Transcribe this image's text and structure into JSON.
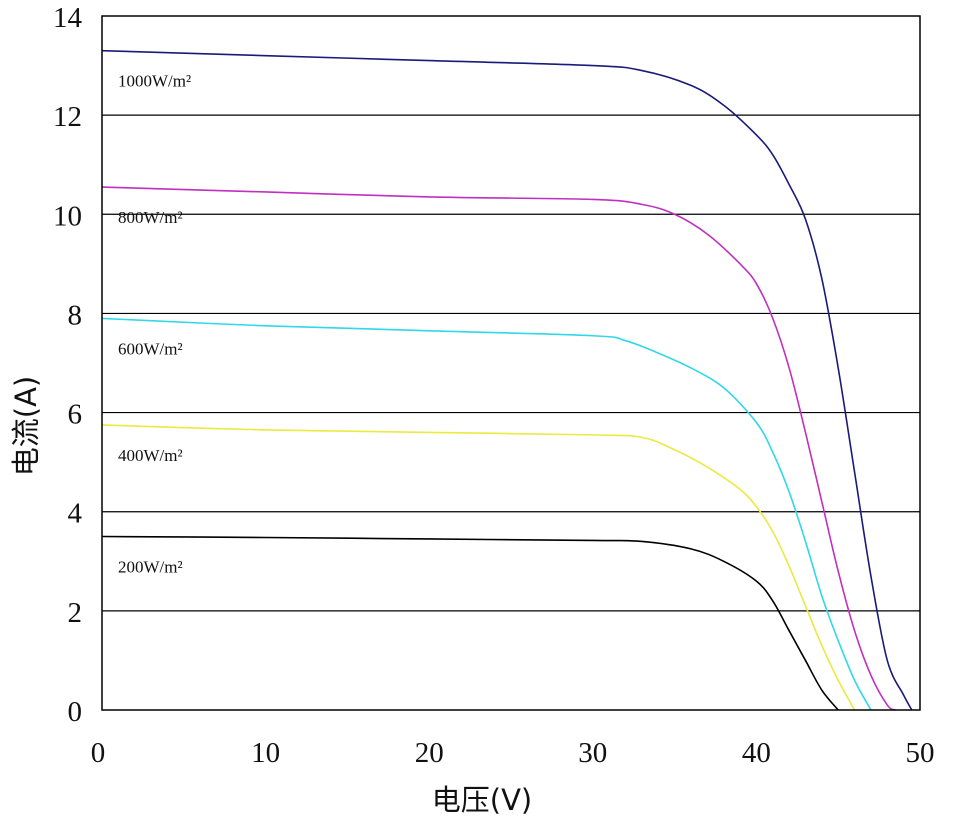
{
  "chart_data": {
    "type": "line",
    "title": "",
    "xlabel": "电压(V)",
    "ylabel": "电流(A)",
    "xlim": [
      0,
      50
    ],
    "ylim": [
      0,
      14
    ],
    "xticks": [
      "0",
      "10",
      "20",
      "30",
      "40",
      "50"
    ],
    "yticks": [
      "0",
      "2",
      "4",
      "6",
      "8",
      "10",
      "12",
      "14"
    ],
    "grid": "horizontal",
    "series": [
      {
        "name": "1000W/m²",
        "color": "#1a1a7a",
        "x": [
          0,
          10,
          20,
          30,
          33,
          36,
          38,
          40,
          41,
          42,
          43,
          44,
          45,
          46,
          47,
          48,
          49,
          49.5
        ],
        "y": [
          13.3,
          13.2,
          13.1,
          13.0,
          12.9,
          12.6,
          12.2,
          11.6,
          11.2,
          10.6,
          9.9,
          8.7,
          6.9,
          4.8,
          2.7,
          1.0,
          0.3,
          0
        ]
      },
      {
        "name": "800W/m²",
        "color": "#c030c0",
        "x": [
          0,
          10,
          20,
          30,
          33,
          35,
          37,
          39,
          40,
          41,
          42,
          43,
          44,
          45,
          46,
          47,
          48,
          48.5
        ],
        "y": [
          10.55,
          10.45,
          10.35,
          10.3,
          10.2,
          10.0,
          9.6,
          9.0,
          8.6,
          7.9,
          6.9,
          5.6,
          4.2,
          2.8,
          1.6,
          0.7,
          0.1,
          0
        ]
      },
      {
        "name": "600W/m²",
        "color": "#30d8e8",
        "x": [
          0,
          10,
          20,
          30,
          32,
          34,
          36,
          38,
          40,
          41,
          42,
          43,
          44,
          45,
          46,
          47
        ],
        "y": [
          7.9,
          7.75,
          7.65,
          7.55,
          7.45,
          7.2,
          6.9,
          6.5,
          5.8,
          5.2,
          4.4,
          3.4,
          2.3,
          1.4,
          0.6,
          0
        ]
      },
      {
        "name": "400W/m²",
        "color": "#eaea40",
        "x": [
          0,
          10,
          20,
          30,
          33,
          35,
          37,
          39,
          40,
          41,
          42,
          43,
          44,
          45,
          46
        ],
        "y": [
          5.75,
          5.65,
          5.6,
          5.55,
          5.5,
          5.25,
          4.9,
          4.45,
          4.1,
          3.6,
          2.9,
          2.1,
          1.3,
          0.6,
          0
        ]
      },
      {
        "name": "200W/m²",
        "color": "#000000",
        "x": [
          0,
          10,
          20,
          30,
          33,
          36,
          38,
          40,
          41,
          42,
          43,
          44,
          45
        ],
        "y": [
          3.5,
          3.48,
          3.45,
          3.42,
          3.4,
          3.25,
          3.0,
          2.6,
          2.2,
          1.6,
          1.0,
          0.4,
          0
        ]
      }
    ]
  }
}
